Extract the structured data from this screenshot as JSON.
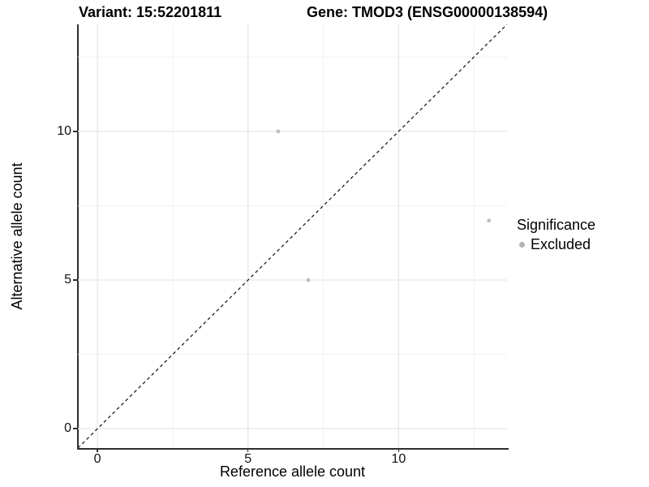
{
  "chart_data": {
    "type": "scatter",
    "title_left": "Variant: 15:52201811",
    "title_right": "Gene: TMOD3 (ENSG00000138594)",
    "xlabel": "Reference allele count",
    "ylabel": "Alternative allele count",
    "xlim": [
      -0.65,
      13.6
    ],
    "ylim": [
      -0.65,
      13.6
    ],
    "x_ticks": [
      {
        "value": 0,
        "label": "0"
      },
      {
        "value": 5,
        "label": "5"
      },
      {
        "value": 10,
        "label": "10"
      }
    ],
    "y_ticks": [
      {
        "value": 0,
        "label": "0"
      },
      {
        "value": 5,
        "label": "5"
      },
      {
        "value": 10,
        "label": "10"
      }
    ],
    "major_gridlines": [
      0,
      5,
      10
    ],
    "minor_gridlines": [
      2.5,
      7.5,
      12.5
    ],
    "grid": {
      "major_color": "#e6e6e6",
      "minor_color": "#f1f1f1",
      "grid_on": true
    },
    "axis_line_color": "#2e2e2e",
    "reference_line": {
      "type": "identity",
      "style": "dashed",
      "color": "#1f1f1f",
      "x1": -0.65,
      "y1": -0.65,
      "x2": 13.6,
      "y2": 13.6
    },
    "series": [
      {
        "name": "Excluded",
        "color": "#bdbdbd",
        "points": [
          {
            "x": 6,
            "y": 10
          },
          {
            "x": 7,
            "y": 5
          },
          {
            "x": 13,
            "y": 7
          }
        ]
      }
    ],
    "legend": {
      "title": "Significance",
      "position": "right",
      "items": [
        {
          "label": "Excluded",
          "color": "#b5b5b5"
        }
      ]
    }
  }
}
